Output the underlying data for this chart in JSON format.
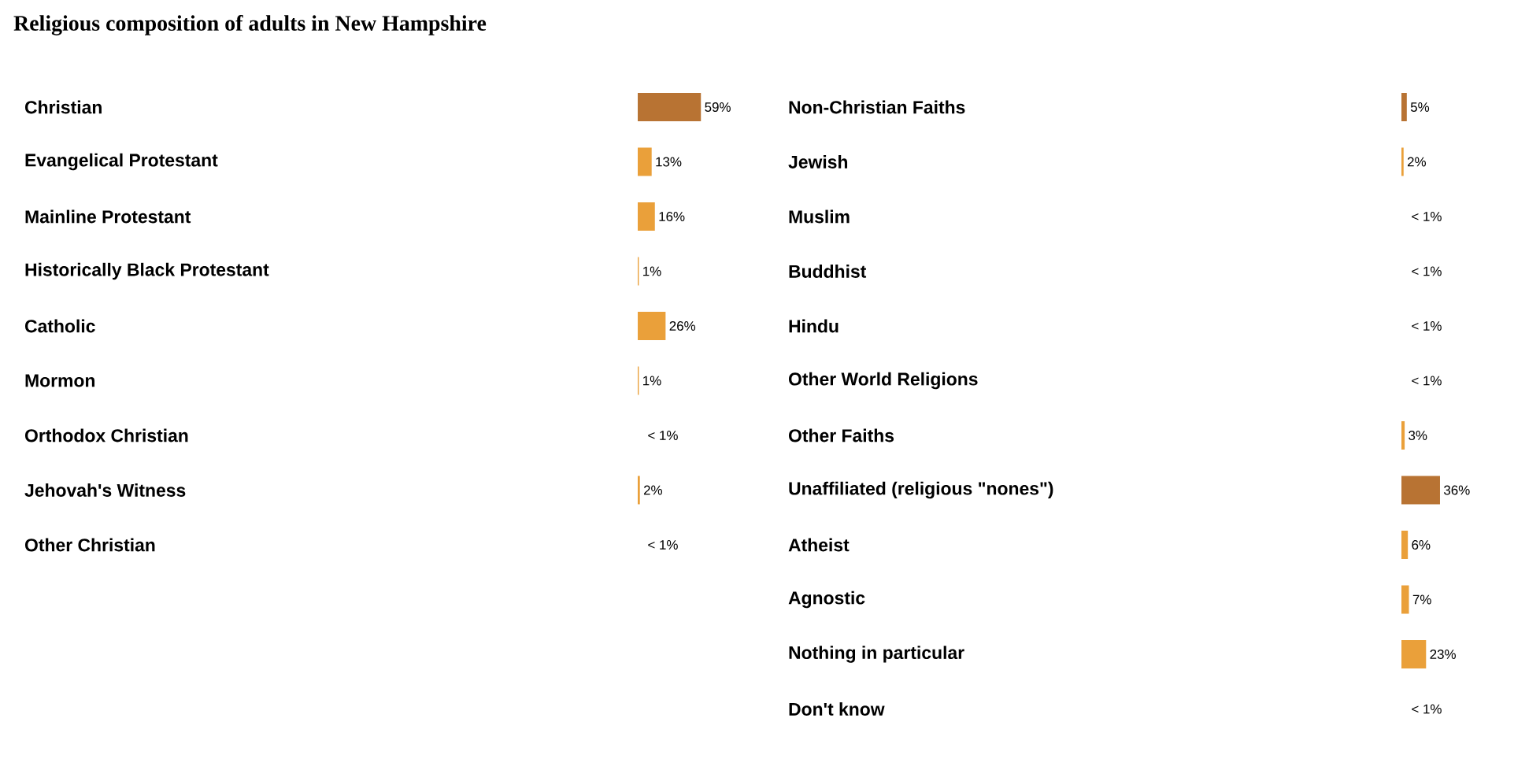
{
  "chart_data": [
    {
      "type": "bar",
      "orientation": "horizontal",
      "title": "Religious composition of adults in New Hampshire",
      "categories": [
        "Christian",
        "Evangelical Protestant",
        "Mainline Protestant",
        "Historically Black Protestant",
        "Catholic",
        "Mormon",
        "Orthodox Christian",
        "Jehovah's Witness",
        "Other Christian"
      ],
      "values": [
        59,
        13,
        16,
        1,
        26,
        1,
        null,
        2,
        null
      ],
      "value_labels": [
        "59%",
        "13%",
        "16%",
        "1%",
        "26%",
        "1%",
        "< 1%",
        "2%",
        "< 1%"
      ],
      "colors": [
        "#b87333",
        "#eaa03a",
        "#eaa03a",
        "#eaa03a",
        "#eaa03a",
        "#eaa03a",
        "#eaa03a",
        "#eaa03a",
        "#eaa03a"
      ]
    },
    {
      "type": "bar",
      "orientation": "horizontal",
      "categories": [
        "Non-Christian Faiths",
        "Jewish",
        "Muslim",
        "Buddhist",
        "Hindu",
        "Other World Religions",
        "Other Faiths",
        "Unaffiliated (religious \"nones\")",
        "Atheist",
        "Agnostic",
        "Nothing in particular",
        "Don't know"
      ],
      "values": [
        5,
        2,
        null,
        null,
        null,
        null,
        3,
        36,
        6,
        7,
        23,
        null
      ],
      "value_labels": [
        "5%",
        "2%",
        "< 1%",
        "< 1%",
        "< 1%",
        "< 1%",
        "3%",
        "36%",
        "6%",
        "7%",
        "23%",
        "< 1%"
      ],
      "colors": [
        "#b87333",
        "#eaa03a",
        "#eaa03a",
        "#eaa03a",
        "#eaa03a",
        "#eaa03a",
        "#eaa03a",
        "#b87333",
        "#eaa03a",
        "#eaa03a",
        "#eaa03a",
        "#eaa03a"
      ]
    }
  ]
}
